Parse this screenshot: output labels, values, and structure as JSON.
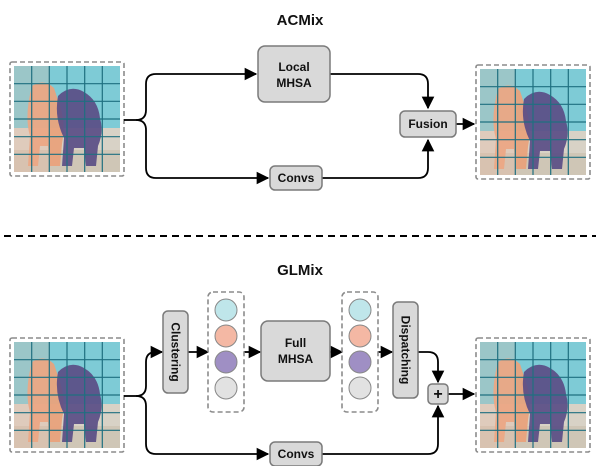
{
  "top": {
    "title": "ACMix",
    "local_mhsa_label_1": "Local",
    "local_mhsa_label_2": "MHSA",
    "convs_label": "Convs",
    "fusion_label": "Fusion"
  },
  "bottom": {
    "title": "GLMix",
    "clustering_label": "Clustering",
    "full_mhsa_label_1": "Full",
    "full_mhsa_label_2": "MHSA",
    "dispatching_label": "Dispatching",
    "convs_label": "Convs",
    "add_label": "+"
  },
  "colors": {
    "token_1": "#bfe6ea",
    "token_2": "#f4b8a4",
    "token_3": "#9f8fc4",
    "token_4": "#e2e2e2"
  }
}
